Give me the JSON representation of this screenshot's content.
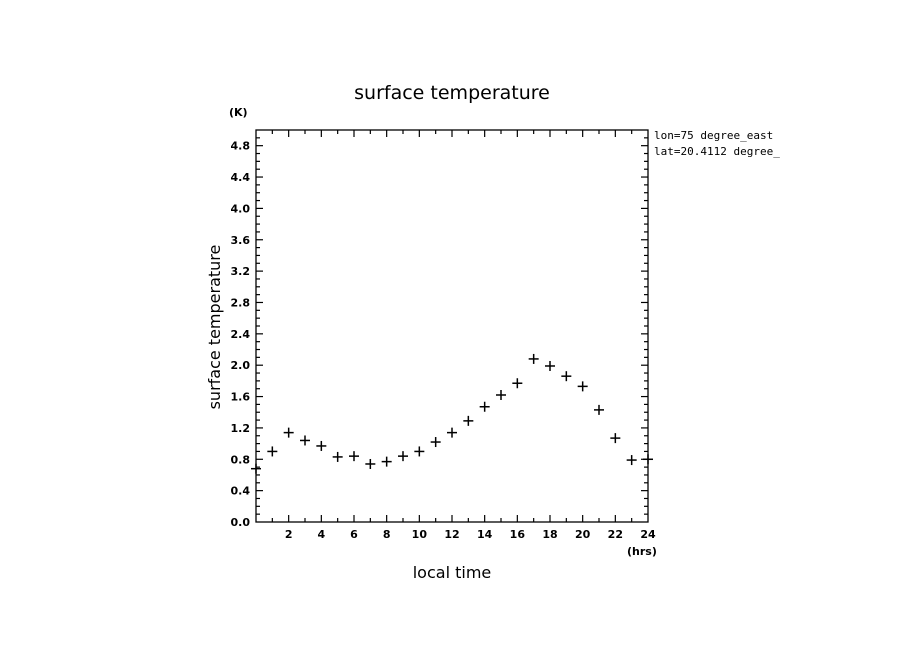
{
  "chart_data": {
    "type": "scatter",
    "title": "surface temperature",
    "xlabel": "local time",
    "ylabel": "surface temperature",
    "xunit": "(hrs)",
    "yunit": "(K)",
    "xlim": [
      0,
      24
    ],
    "ylim": [
      0,
      5.0
    ],
    "xticks": [
      2,
      4,
      6,
      8,
      10,
      12,
      14,
      16,
      18,
      20,
      22,
      24
    ],
    "yticks": [
      0.0,
      0.4,
      0.8,
      1.2,
      1.6,
      2.0,
      2.4,
      2.8,
      3.2,
      3.6,
      4.0,
      4.4,
      4.8
    ],
    "ytick_labels": [
      "0.0",
      "0.4",
      "0.8",
      "1.2",
      "1.6",
      "2.0",
      "2.4",
      "2.8",
      "3.2",
      "3.6",
      "4.0",
      "4.4",
      "4.8"
    ],
    "marker": "plus",
    "grid": false,
    "annotations": [
      "lon=75 degree_east",
      "lat=20.4112 degree_"
    ],
    "x": [
      0,
      1,
      2,
      3,
      4,
      5,
      6,
      7,
      8,
      9,
      10,
      11,
      12,
      13,
      14,
      15,
      16,
      17,
      18,
      19,
      20,
      21,
      22,
      23,
      24
    ],
    "y": [
      0.68,
      0.9,
      1.14,
      1.04,
      0.97,
      0.83,
      0.84,
      0.74,
      0.77,
      0.84,
      0.9,
      1.02,
      1.14,
      1.29,
      1.47,
      1.62,
      1.77,
      2.08,
      1.99,
      1.86,
      1.73,
      1.43,
      1.07,
      0.79,
      0.8
    ]
  }
}
